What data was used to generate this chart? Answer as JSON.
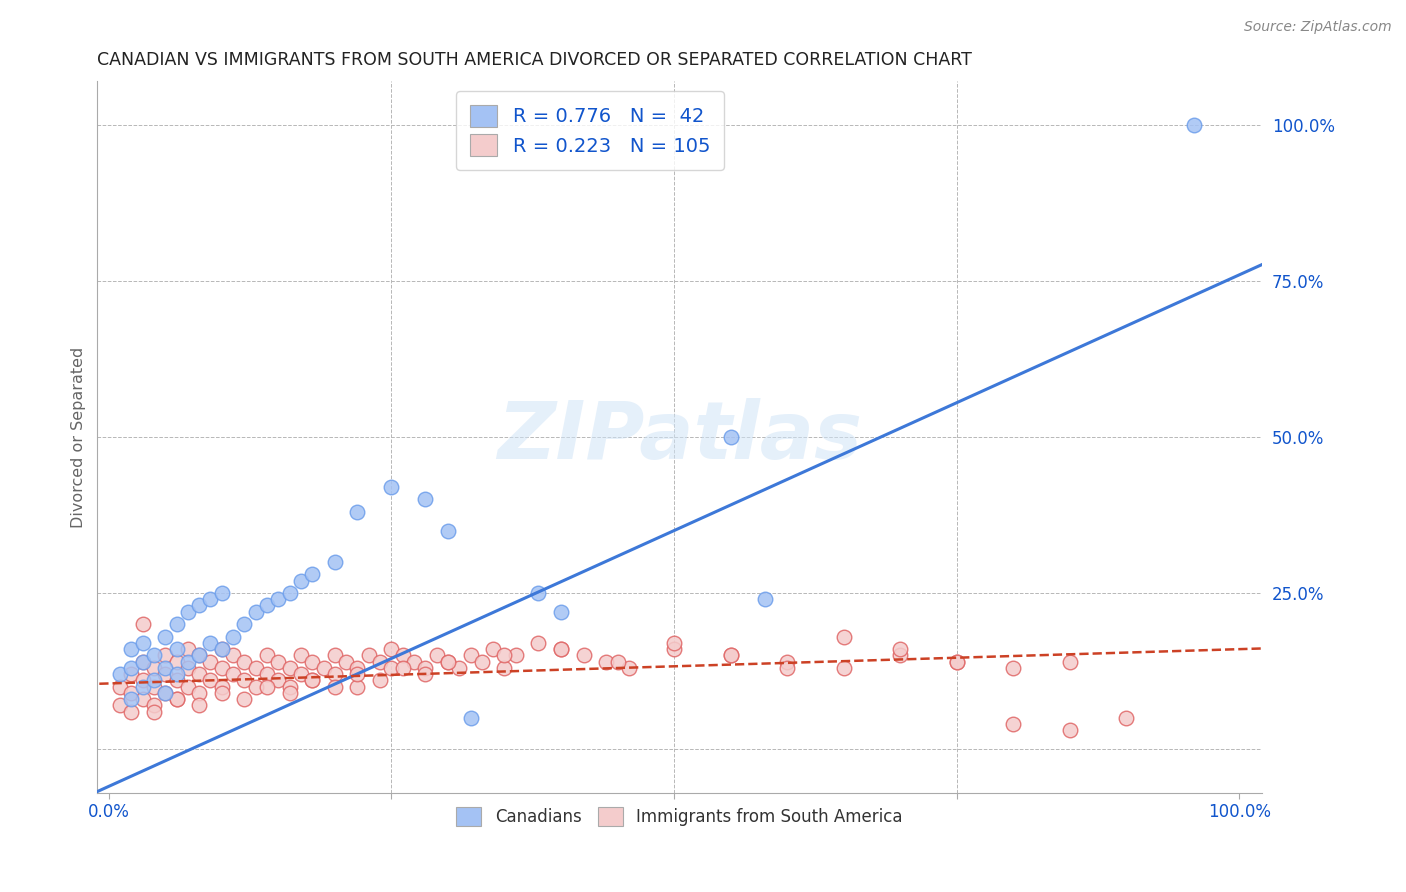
{
  "title": "CANADIAN VS IMMIGRANTS FROM SOUTH AMERICA DIVORCED OR SEPARATED CORRELATION CHART",
  "source": "Source: ZipAtlas.com",
  "ylabel": "Divorced or Separated",
  "watermark": "ZIPatlas",
  "blue_R": 0.776,
  "blue_N": 42,
  "pink_R": 0.223,
  "pink_N": 105,
  "blue_color": "#a4c2f4",
  "pink_color": "#f4cccc",
  "blue_edge_color": "#6d9eeb",
  "pink_edge_color": "#e06666",
  "blue_line_color": "#3d78d8",
  "pink_line_color": "#cc4125",
  "legend_R_N_color": "#1155cc",
  "legend_label_color": "#000000",
  "xtick_label_color": "#1155cc",
  "ytick_label_color": "#1155cc",
  "background_color": "#ffffff",
  "grid_color": "#b7b7b7",
  "blue_line_slope": 0.82,
  "blue_line_intercept": -0.06,
  "pink_line_slope": 0.055,
  "pink_line_intercept": 0.105,
  "blue_scatter_x": [
    0.01,
    0.02,
    0.02,
    0.02,
    0.03,
    0.03,
    0.03,
    0.04,
    0.04,
    0.05,
    0.05,
    0.05,
    0.06,
    0.06,
    0.06,
    0.07,
    0.07,
    0.08,
    0.08,
    0.09,
    0.09,
    0.1,
    0.1,
    0.11,
    0.12,
    0.13,
    0.14,
    0.15,
    0.16,
    0.17,
    0.18,
    0.2,
    0.22,
    0.25,
    0.28,
    0.3,
    0.38,
    0.4,
    0.55,
    0.58,
    0.96,
    0.32
  ],
  "blue_scatter_y": [
    0.12,
    0.08,
    0.13,
    0.16,
    0.1,
    0.14,
    0.17,
    0.11,
    0.15,
    0.09,
    0.13,
    0.18,
    0.12,
    0.16,
    0.2,
    0.14,
    0.22,
    0.15,
    0.23,
    0.17,
    0.24,
    0.16,
    0.25,
    0.18,
    0.2,
    0.22,
    0.23,
    0.24,
    0.25,
    0.27,
    0.28,
    0.3,
    0.38,
    0.42,
    0.4,
    0.35,
    0.25,
    0.22,
    0.5,
    0.24,
    1.0,
    0.05
  ],
  "pink_scatter_x": [
    0.01,
    0.01,
    0.02,
    0.02,
    0.02,
    0.03,
    0.03,
    0.03,
    0.04,
    0.04,
    0.04,
    0.05,
    0.05,
    0.05,
    0.06,
    0.06,
    0.06,
    0.07,
    0.07,
    0.07,
    0.08,
    0.08,
    0.08,
    0.09,
    0.09,
    0.1,
    0.1,
    0.1,
    0.11,
    0.11,
    0.12,
    0.12,
    0.13,
    0.13,
    0.14,
    0.14,
    0.15,
    0.15,
    0.16,
    0.16,
    0.17,
    0.17,
    0.18,
    0.18,
    0.19,
    0.2,
    0.2,
    0.21,
    0.22,
    0.22,
    0.23,
    0.24,
    0.25,
    0.25,
    0.26,
    0.27,
    0.28,
    0.29,
    0.3,
    0.31,
    0.32,
    0.33,
    0.34,
    0.35,
    0.36,
    0.38,
    0.4,
    0.42,
    0.44,
    0.46,
    0.5,
    0.55,
    0.6,
    0.65,
    0.7,
    0.75,
    0.8,
    0.85,
    0.04,
    0.06,
    0.08,
    0.1,
    0.12,
    0.14,
    0.16,
    0.18,
    0.2,
    0.22,
    0.24,
    0.26,
    0.28,
    0.3,
    0.35,
    0.4,
    0.45,
    0.5,
    0.55,
    0.6,
    0.65,
    0.7,
    0.75,
    0.8,
    0.85,
    0.9,
    0.03
  ],
  "pink_scatter_y": [
    0.1,
    0.07,
    0.09,
    0.12,
    0.06,
    0.11,
    0.08,
    0.14,
    0.1,
    0.13,
    0.07,
    0.12,
    0.09,
    0.15,
    0.11,
    0.14,
    0.08,
    0.13,
    0.1,
    0.16,
    0.12,
    0.09,
    0.15,
    0.11,
    0.14,
    0.13,
    0.1,
    0.16,
    0.12,
    0.15,
    0.11,
    0.14,
    0.13,
    0.1,
    0.15,
    0.12,
    0.14,
    0.11,
    0.13,
    0.1,
    0.15,
    0.12,
    0.14,
    0.11,
    0.13,
    0.15,
    0.12,
    0.14,
    0.13,
    0.1,
    0.15,
    0.14,
    0.16,
    0.13,
    0.15,
    0.14,
    0.13,
    0.15,
    0.14,
    0.13,
    0.15,
    0.14,
    0.16,
    0.13,
    0.15,
    0.17,
    0.16,
    0.15,
    0.14,
    0.13,
    0.16,
    0.15,
    0.14,
    0.13,
    0.15,
    0.14,
    0.13,
    0.14,
    0.06,
    0.08,
    0.07,
    0.09,
    0.08,
    0.1,
    0.09,
    0.11,
    0.1,
    0.12,
    0.11,
    0.13,
    0.12,
    0.14,
    0.15,
    0.16,
    0.14,
    0.17,
    0.15,
    0.13,
    0.18,
    0.16,
    0.14,
    0.04,
    0.03,
    0.05,
    0.2
  ]
}
